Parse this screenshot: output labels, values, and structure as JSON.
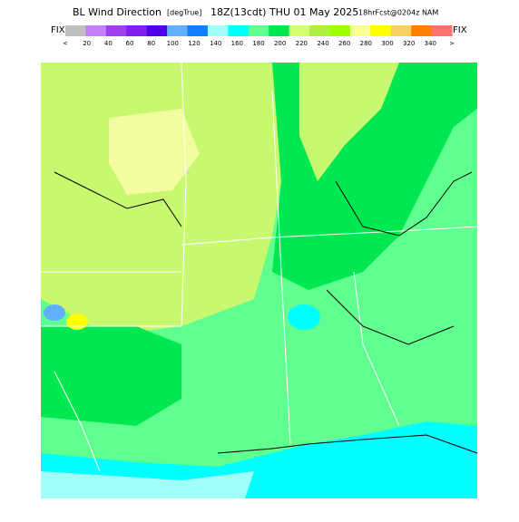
{
  "header": {
    "title": "BL Wind Direction",
    "units": "[degTrue]",
    "time": "18Z(13cdt) THU 01 May 2025",
    "forecast": "18hrFcst@0204z NAM"
  },
  "legend": {
    "left_end": "FIX",
    "right_end": "FIX",
    "labels": [
      "<",
      "20",
      "40",
      "60",
      "80",
      "100",
      "120",
      "140",
      "160",
      "180",
      "200",
      "220",
      "240",
      "260",
      "280",
      "300",
      "320",
      "340",
      ">"
    ],
    "colors": [
      "#c0c0c0",
      "#c080f8",
      "#a040f0",
      "#8020f0",
      "#5000e8",
      "#60b0ff",
      "#1080ff",
      "#a0fff8",
      "#00ffff",
      "#60ff90",
      "#00e850",
      "#d0ff70",
      "#b0f040",
      "#a0ff00",
      "#f8ff90",
      "#ffff00",
      "#f8d060",
      "#ff8000",
      "#ff7070"
    ]
  }
}
